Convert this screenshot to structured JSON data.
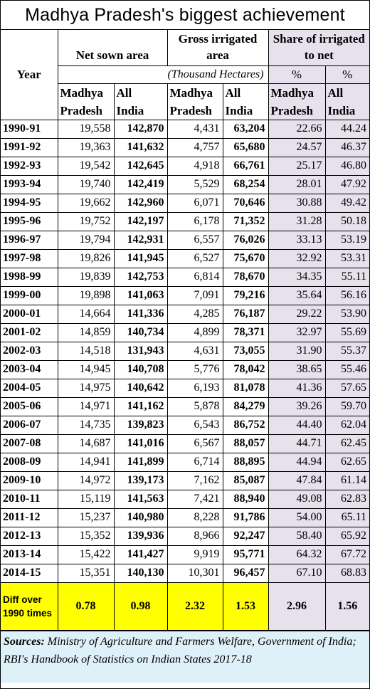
{
  "title": "Madhya Pradesh's biggest achievement",
  "header": {
    "year": "Year",
    "groups": [
      {
        "id": "net",
        "label": "Net sown area"
      },
      {
        "id": "gross",
        "label": "Gross irrigated area"
      },
      {
        "id": "share",
        "label": "Share of irrigated to net"
      }
    ],
    "units": "(Thousand Hectares)",
    "pct": [
      "%",
      "%"
    ],
    "subs": [
      {
        "line1": "Madhya",
        "line2": "Pradesh"
      },
      {
        "line1": "All",
        "line2": "India"
      },
      {
        "line1": "Madhya",
        "line2": "Pradesh"
      },
      {
        "line1": "All",
        "line2": "India"
      },
      {
        "line1": "Madhya",
        "line2": "Pradesh"
      },
      {
        "line1": "All",
        "line2": "India"
      }
    ]
  },
  "rows": [
    {
      "year": "1990-91",
      "net_mp": "19,558",
      "net_india": "142,870",
      "gross_mp": "4,431",
      "gross_india": "63,204",
      "share_mp": "22.66",
      "share_india": "44.24"
    },
    {
      "year": "1991-92",
      "net_mp": "19,363",
      "net_india": "141,632",
      "gross_mp": "4,757",
      "gross_india": "65,680",
      "share_mp": "24.57",
      "share_india": "46.37"
    },
    {
      "year": "1992-93",
      "net_mp": "19,542",
      "net_india": "142,645",
      "gross_mp": "4,918",
      "gross_india": "66,761",
      "share_mp": "25.17",
      "share_india": "46.80"
    },
    {
      "year": "1993-94",
      "net_mp": "19,740",
      "net_india": "142,419",
      "gross_mp": "5,529",
      "gross_india": "68,254",
      "share_mp": "28.01",
      "share_india": "47.92"
    },
    {
      "year": "1994-95",
      "net_mp": "19,662",
      "net_india": "142,960",
      "gross_mp": "6,071",
      "gross_india": "70,646",
      "share_mp": "30.88",
      "share_india": "49.42"
    },
    {
      "year": "1995-96",
      "net_mp": "19,752",
      "net_india": "142,197",
      "gross_mp": "6,178",
      "gross_india": "71,352",
      "share_mp": "31.28",
      "share_india": "50.18"
    },
    {
      "year": "1996-97",
      "net_mp": "19,794",
      "net_india": "142,931",
      "gross_mp": "6,557",
      "gross_india": "76,026",
      "share_mp": "33.13",
      "share_india": "53.19"
    },
    {
      "year": "1997-98",
      "net_mp": "19,826",
      "net_india": "141,945",
      "gross_mp": "6,527",
      "gross_india": "75,670",
      "share_mp": "32.92",
      "share_india": "53.31"
    },
    {
      "year": "1998-99",
      "net_mp": "19,839",
      "net_india": "142,753",
      "gross_mp": "6,814",
      "gross_india": "78,670",
      "share_mp": "34.35",
      "share_india": "55.11"
    },
    {
      "year": "1999-00",
      "net_mp": "19,898",
      "net_india": "141,063",
      "gross_mp": "7,091",
      "gross_india": "79,216",
      "share_mp": "35.64",
      "share_india": "56.16"
    },
    {
      "year": "2000-01",
      "net_mp": "14,664",
      "net_india": "141,336",
      "gross_mp": "4,285",
      "gross_india": "76,187",
      "share_mp": "29.22",
      "share_india": "53.90"
    },
    {
      "year": "2001-02",
      "net_mp": "14,859",
      "net_india": "140,734",
      "gross_mp": "4,899",
      "gross_india": "78,371",
      "share_mp": "32.97",
      "share_india": "55.69"
    },
    {
      "year": "2002-03",
      "net_mp": "14,518",
      "net_india": "131,943",
      "gross_mp": "4,631",
      "gross_india": "73,055",
      "share_mp": "31.90",
      "share_india": "55.37"
    },
    {
      "year": "2003-04",
      "net_mp": "14,945",
      "net_india": "140,708",
      "gross_mp": "5,776",
      "gross_india": "78,042",
      "share_mp": "38.65",
      "share_india": "55.46"
    },
    {
      "year": "2004-05",
      "net_mp": "14,975",
      "net_india": "140,642",
      "gross_mp": "6,193",
      "gross_india": "81,078",
      "share_mp": "41.36",
      "share_india": "57.65"
    },
    {
      "year": "2005-06",
      "net_mp": "14,971",
      "net_india": "141,162",
      "gross_mp": "5,878",
      "gross_india": "84,279",
      "share_mp": "39.26",
      "share_india": "59.70"
    },
    {
      "year": "2006-07",
      "net_mp": "14,735",
      "net_india": "139,823",
      "gross_mp": "6,543",
      "gross_india": "86,752",
      "share_mp": "44.40",
      "share_india": "62.04"
    },
    {
      "year": "2007-08",
      "net_mp": "14,687",
      "net_india": "141,016",
      "gross_mp": "6,567",
      "gross_india": "88,057",
      "share_mp": "44.71",
      "share_india": "62.45"
    },
    {
      "year": "2008-09",
      "net_mp": "14,941",
      "net_india": "141,899",
      "gross_mp": "6,714",
      "gross_india": "88,895",
      "share_mp": "44.94",
      "share_india": "62.65"
    },
    {
      "year": "2009-10",
      "net_mp": "14,972",
      "net_india": "139,173",
      "gross_mp": "7,162",
      "gross_india": "85,087",
      "share_mp": "47.84",
      "share_india": "61.14"
    },
    {
      "year": "2010-11",
      "net_mp": "15,119",
      "net_india": "141,563",
      "gross_mp": "7,421",
      "gross_india": "88,940",
      "share_mp": "49.08",
      "share_india": "62.83"
    },
    {
      "year": "2011-12",
      "net_mp": "15,237",
      "net_india": "140,980",
      "gross_mp": "8,228",
      "gross_india": "91,786",
      "share_mp": "54.00",
      "share_india": "65.11"
    },
    {
      "year": "2012-13",
      "net_mp": "15,352",
      "net_india": "139,936",
      "gross_mp": "8,966",
      "gross_india": "92,247",
      "share_mp": "58.40",
      "share_india": "65.92"
    },
    {
      "year": "2013-14",
      "net_mp": "15,422",
      "net_india": "141,427",
      "gross_mp": "9,919",
      "gross_india": "95,771",
      "share_mp": "64.32",
      "share_india": "67.72"
    },
    {
      "year": "2014-15",
      "net_mp": "15,351",
      "net_india": "140,130",
      "gross_mp": "10,301",
      "gross_india": "96,457",
      "share_mp": "67.10",
      "share_india": "68.83"
    }
  ],
  "diff": {
    "label": "Diff over 1990 times",
    "values": [
      "0.78",
      "0.98",
      "2.32",
      "1.53",
      "2.96",
      "1.56"
    ]
  },
  "sources": {
    "label": "Sources:",
    "text": "Ministry of Agriculture and Farmers Welfare, Government of India; RBI's Handbook of Statistics on Indian States 2017-18"
  },
  "colors": {
    "share_shade": "#e6e1ec",
    "diff_highlight": "#ffff00",
    "sources_bg": "#dff1f8"
  }
}
